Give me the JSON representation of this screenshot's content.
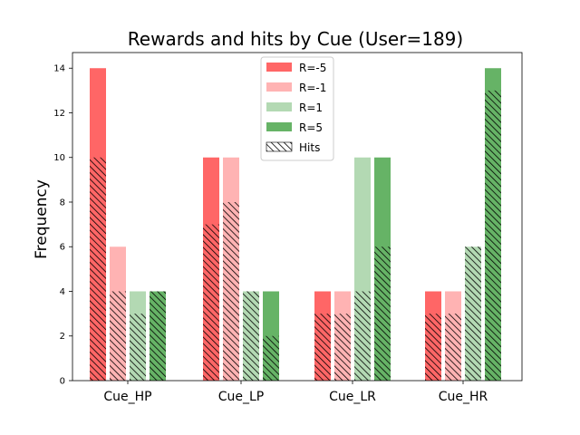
{
  "chart_data": {
    "type": "bar",
    "title": "Rewards and hits by Cue (User=189)",
    "xlabel": "",
    "ylabel": "Frequency",
    "categories": [
      "Cue_HP",
      "Cue_LP",
      "Cue_LR",
      "Cue_HR"
    ],
    "ylim": [
      0,
      14.7
    ],
    "yticks": [
      0,
      2,
      4,
      6,
      8,
      10,
      12,
      14
    ],
    "grid": false,
    "legend_position": "top-center",
    "series": [
      {
        "name": "R=-5",
        "color": "#ff0000",
        "values": [
          14,
          10,
          4,
          4
        ],
        "hits": [
          10,
          7,
          3,
          3
        ]
      },
      {
        "name": "R=-1",
        "color": "#ff8080",
        "values": [
          6,
          10,
          4,
          4
        ],
        "hits": [
          4,
          8,
          3,
          3
        ]
      },
      {
        "name": "R=1",
        "color": "#80c080",
        "values": [
          4,
          4,
          10,
          6
        ],
        "hits": [
          3,
          4,
          4,
          6
        ]
      },
      {
        "name": "R=5",
        "color": "#008000",
        "values": [
          4,
          4,
          10,
          14
        ],
        "hits": [
          4,
          2,
          6,
          13
        ]
      }
    ],
    "hits_legend": "Hits"
  }
}
